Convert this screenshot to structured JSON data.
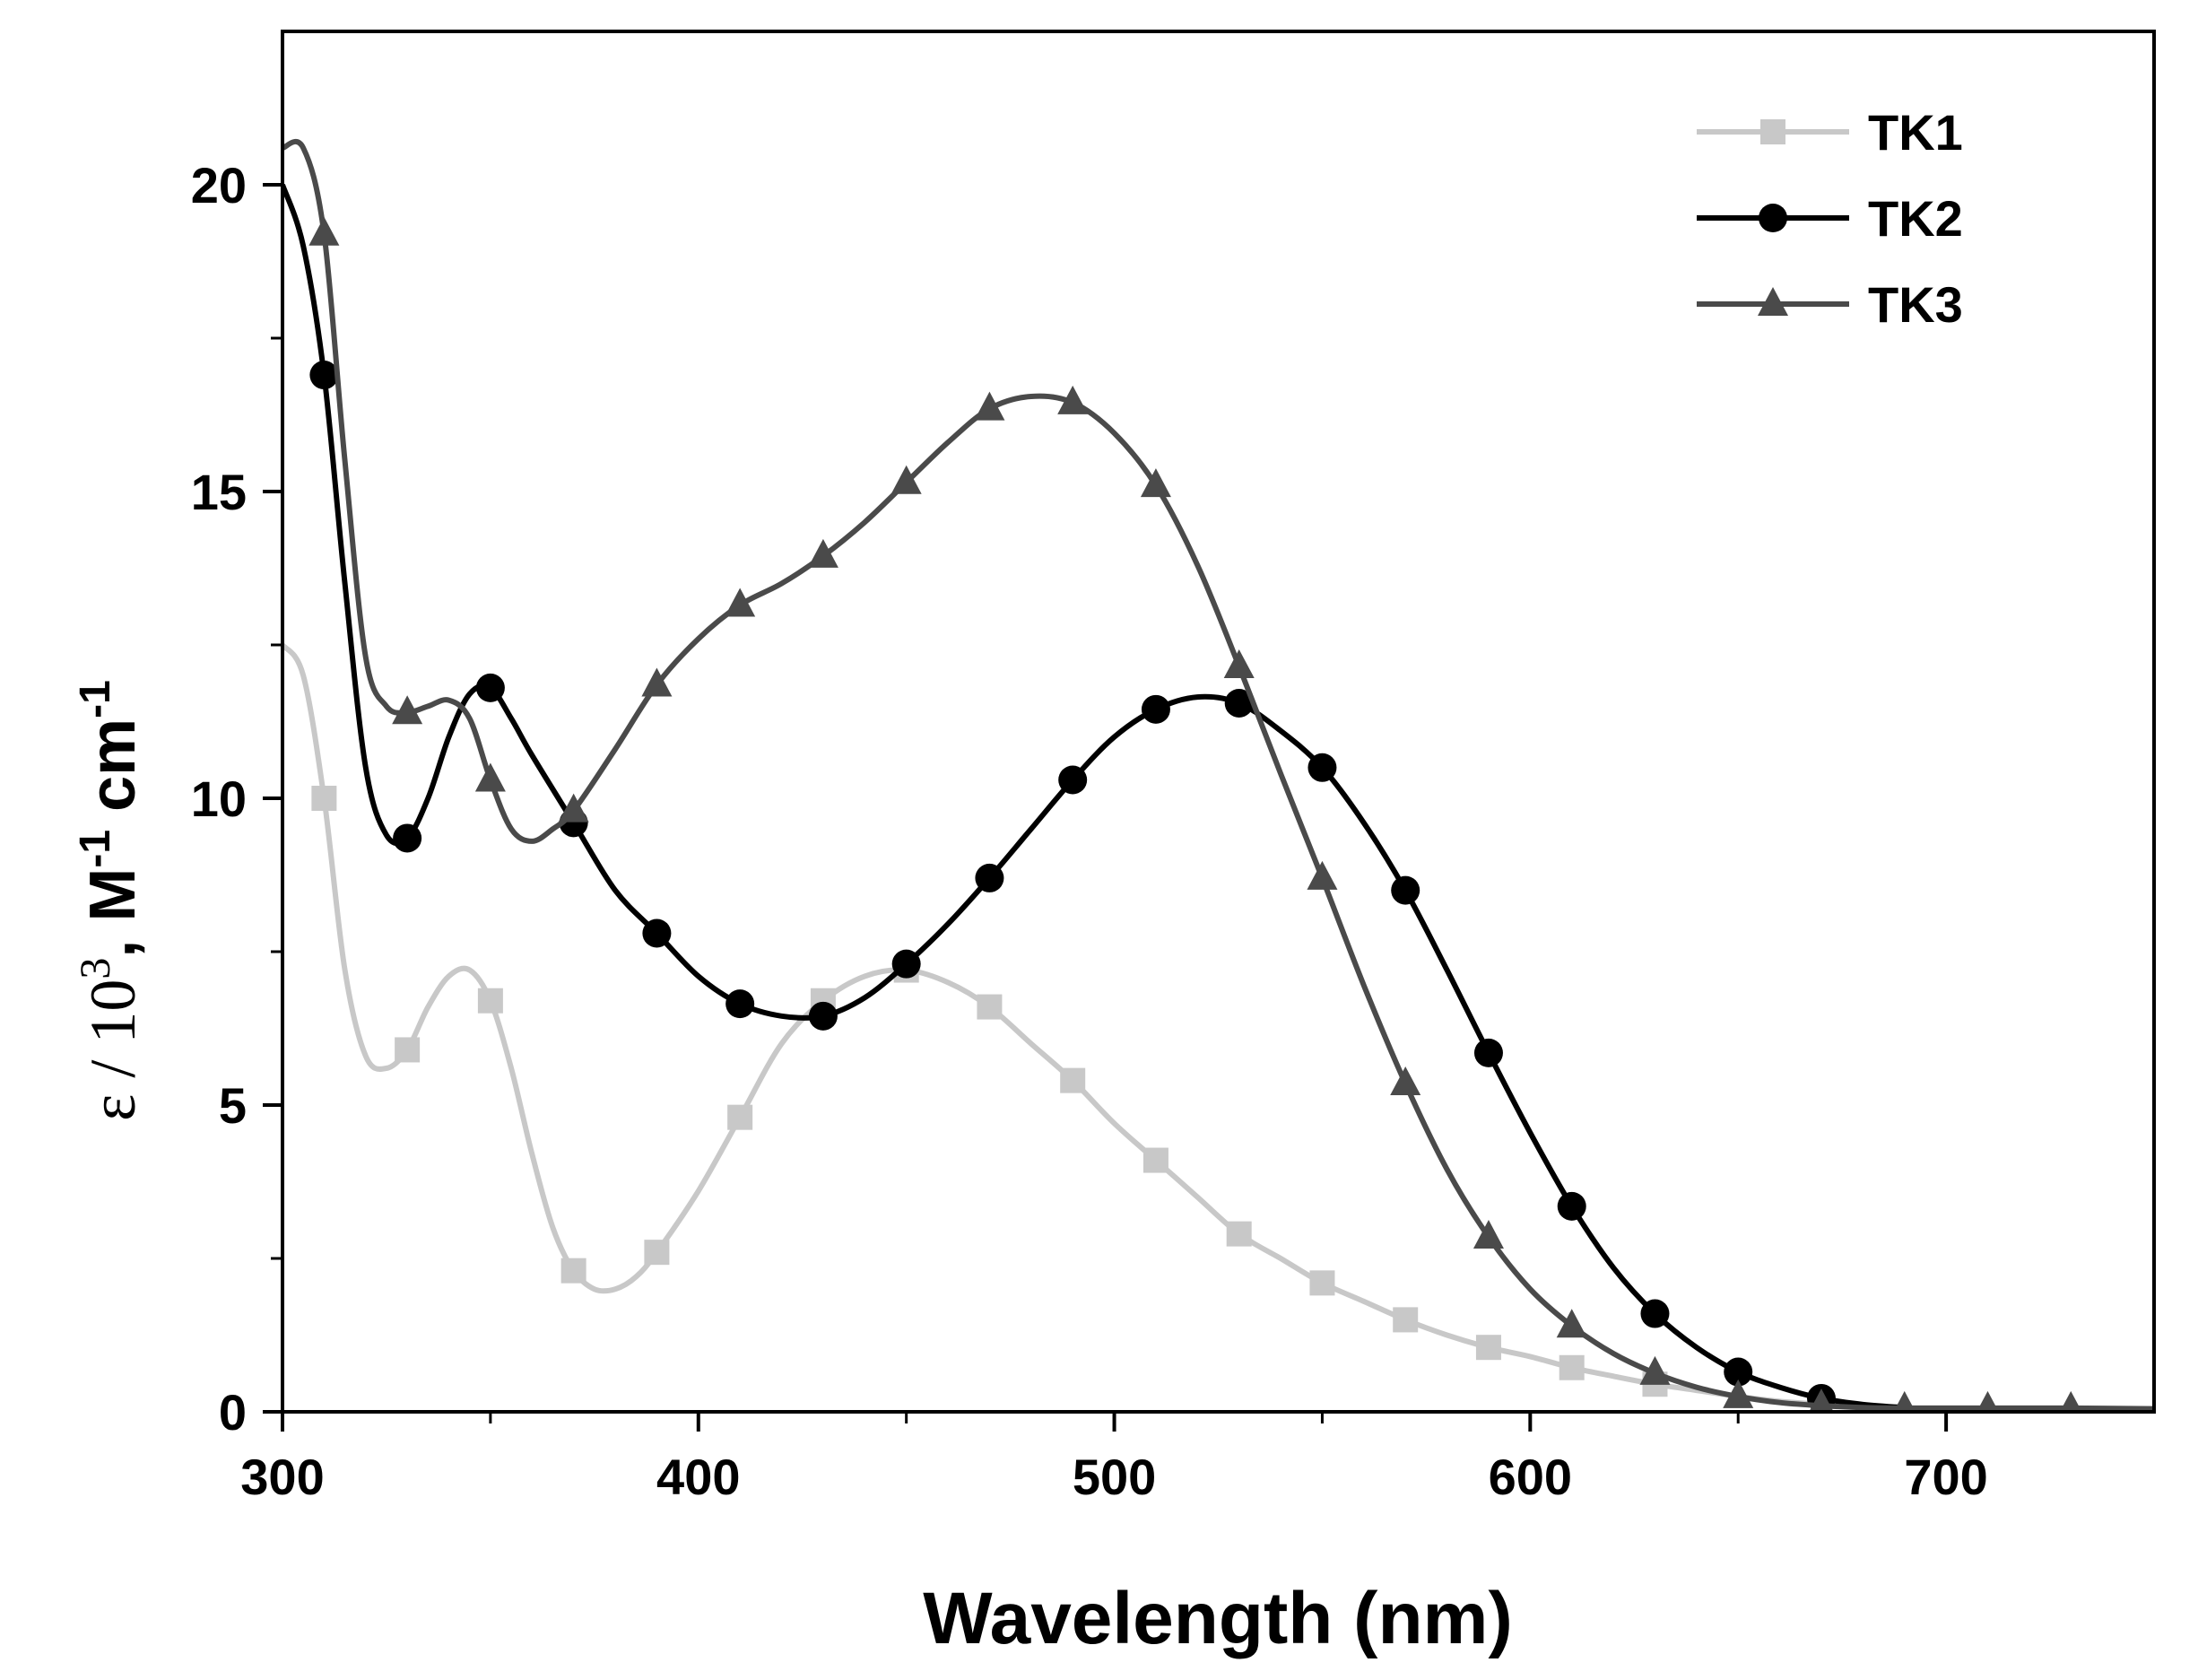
{
  "chart_data": {
    "type": "line",
    "xlabel": "Wavelength (nm)",
    "ylabel": {
      "symbol": "ε",
      "unit_scale": " / 10",
      "scale_exp": "3",
      "units": ", M",
      "m_exp": "-1",
      "cm": " cm",
      "cm_exp": "-1"
    },
    "xlim": [
      300,
      750
    ],
    "ylim": [
      0,
      22.5
    ],
    "xticks": [
      300,
      400,
      500,
      600,
      700
    ],
    "xticks_minor": [
      350,
      450,
      550,
      650
    ],
    "yticks": [
      0,
      5,
      10,
      15,
      20
    ],
    "legend_position": "top-right",
    "series": [
      {
        "name": "TK1",
        "color": "#c8c8c8",
        "marker": "square",
        "x": [
          300,
          305,
          310,
          315,
          320,
          325,
          330,
          335,
          340,
          345,
          350,
          355,
          360,
          365,
          370,
          375,
          380,
          385,
          390,
          400,
          410,
          420,
          430,
          440,
          450,
          460,
          470,
          480,
          490,
          500,
          510,
          520,
          530,
          540,
          550,
          560,
          570,
          580,
          590,
          600,
          610,
          620,
          630,
          640,
          650,
          660,
          670,
          680,
          700,
          750
        ],
        "y": [
          12.5,
          12.0,
          10.0,
          7.2,
          5.8,
          5.6,
          5.9,
          6.6,
          7.1,
          7.2,
          6.7,
          5.6,
          4.2,
          3.0,
          2.3,
          2.0,
          2.0,
          2.2,
          2.6,
          3.6,
          4.8,
          6.0,
          6.7,
          7.1,
          7.2,
          7.0,
          6.6,
          6.0,
          5.4,
          4.7,
          4.1,
          3.5,
          2.9,
          2.5,
          2.1,
          1.8,
          1.5,
          1.25,
          1.05,
          0.9,
          0.72,
          0.58,
          0.45,
          0.35,
          0.25,
          0.17,
          0.12,
          0.08,
          0.05,
          0.03
        ],
        "marker_x": [
          310,
          330,
          350,
          370,
          390,
          410,
          430,
          450,
          470,
          490,
          510,
          530,
          550,
          570,
          590,
          610,
          630
        ]
      },
      {
        "name": "TK2",
        "color": "#000000",
        "marker": "circle",
        "x": [
          300,
          305,
          310,
          315,
          320,
          325,
          330,
          335,
          340,
          345,
          350,
          355,
          360,
          370,
          380,
          390,
          400,
          410,
          420,
          430,
          440,
          450,
          460,
          470,
          480,
          490,
          500,
          510,
          520,
          530,
          540,
          550,
          560,
          570,
          580,
          590,
          600,
          610,
          620,
          630,
          640,
          650,
          660,
          670,
          680,
          690,
          700,
          750
        ],
        "y": [
          20.0,
          19.0,
          16.9,
          13.5,
          10.5,
          9.4,
          9.35,
          10.0,
          11.0,
          11.7,
          11.8,
          11.3,
          10.7,
          9.6,
          8.5,
          7.8,
          7.1,
          6.65,
          6.45,
          6.45,
          6.75,
          7.3,
          7.95,
          8.7,
          9.5,
          10.3,
          11.0,
          11.45,
          11.65,
          11.55,
          11.1,
          10.5,
          9.6,
          8.5,
          7.2,
          5.85,
          4.55,
          3.35,
          2.35,
          1.6,
          1.05,
          0.65,
          0.4,
          0.22,
          0.12,
          0.07,
          0.04,
          0.02
        ],
        "marker_x": [
          310,
          330,
          350,
          370,
          390,
          410,
          430,
          450,
          470,
          490,
          510,
          530,
          550,
          570,
          590,
          610,
          630,
          650,
          670
        ]
      },
      {
        "name": "TK3",
        "color": "#4a4a4a",
        "marker": "triangle",
        "x": [
          300,
          305,
          310,
          315,
          320,
          325,
          330,
          335,
          340,
          345,
          350,
          355,
          360,
          365,
          370,
          380,
          390,
          400,
          410,
          420,
          430,
          440,
          450,
          460,
          470,
          480,
          490,
          500,
          510,
          520,
          530,
          540,
          550,
          560,
          570,
          580,
          590,
          600,
          610,
          620,
          630,
          640,
          650,
          660,
          670,
          680,
          690,
          700,
          710,
          730,
          750
        ],
        "y": [
          20.6,
          20.6,
          19.2,
          15.5,
          12.3,
          11.5,
          11.4,
          11.5,
          11.6,
          11.3,
          10.3,
          9.5,
          9.3,
          9.5,
          9.8,
          10.8,
          11.85,
          12.6,
          13.15,
          13.5,
          13.95,
          14.5,
          15.15,
          15.8,
          16.35,
          16.55,
          16.45,
          15.95,
          15.1,
          13.8,
          12.15,
          10.4,
          8.7,
          6.95,
          5.35,
          3.95,
          2.85,
          2.0,
          1.4,
          0.95,
          0.63,
          0.4,
          0.25,
          0.15,
          0.1,
          0.07,
          0.06,
          0.06,
          0.06,
          0.06,
          0.05
        ],
        "marker_x": [
          310,
          330,
          350,
          370,
          390,
          410,
          430,
          450,
          470,
          490,
          510,
          530,
          550,
          570,
          590,
          610,
          630,
          650,
          670,
          690,
          710,
          730
        ]
      }
    ]
  }
}
